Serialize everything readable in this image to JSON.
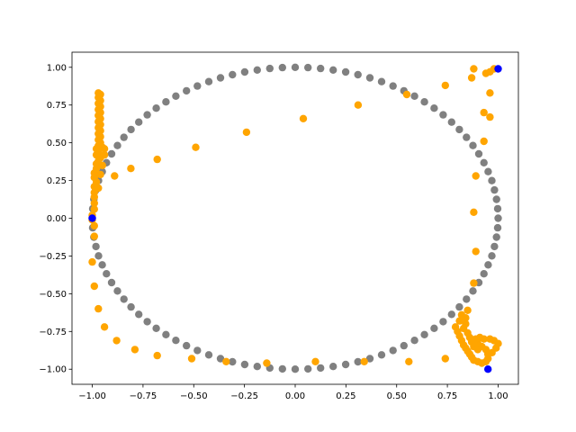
{
  "chart_data": {
    "type": "scatter",
    "title": "",
    "xlabel": "",
    "ylabel": "",
    "xlim": [
      -1.1,
      1.1
    ],
    "ylim": [
      -1.1,
      1.1
    ],
    "grid": false,
    "xticks": [
      -1.0,
      -0.75,
      -0.5,
      -0.25,
      0.0,
      0.25,
      0.5,
      0.75,
      1.0
    ],
    "yticks": [
      -1.0,
      -0.75,
      -0.5,
      -0.25,
      0.0,
      0.25,
      0.5,
      0.75,
      1.0
    ],
    "xtick_labels": [
      "−1.00",
      "−0.75",
      "−0.50",
      "−0.25",
      "0.00",
      "0.25",
      "0.50",
      "0.75",
      "1.00"
    ],
    "ytick_labels": [
      "−1.00",
      "−0.75",
      "−0.50",
      "−0.25",
      "0.00",
      "0.25",
      "0.50",
      "0.75",
      "1.00"
    ],
    "series": [
      {
        "color": "#808080",
        "points": [
          [
            1.0,
            0.0
          ],
          [
            0.998,
            0.063
          ],
          [
            0.992,
            0.125
          ],
          [
            0.982,
            0.187
          ],
          [
            0.969,
            0.249
          ],
          [
            0.951,
            0.309
          ],
          [
            0.93,
            0.368
          ],
          [
            0.905,
            0.426
          ],
          [
            0.876,
            0.482
          ],
          [
            0.844,
            0.536
          ],
          [
            0.809,
            0.588
          ],
          [
            0.771,
            0.637
          ],
          [
            0.729,
            0.685
          ],
          [
            0.685,
            0.729
          ],
          [
            0.637,
            0.771
          ],
          [
            0.588,
            0.809
          ],
          [
            0.536,
            0.844
          ],
          [
            0.482,
            0.876
          ],
          [
            0.426,
            0.905
          ],
          [
            0.368,
            0.93
          ],
          [
            0.309,
            0.951
          ],
          [
            0.249,
            0.969
          ],
          [
            0.187,
            0.982
          ],
          [
            0.125,
            0.992
          ],
          [
            0.063,
            0.998
          ],
          [
            0.0,
            1.0
          ],
          [
            -0.063,
            0.998
          ],
          [
            -0.125,
            0.992
          ],
          [
            -0.187,
            0.982
          ],
          [
            -0.249,
            0.969
          ],
          [
            -0.309,
            0.951
          ],
          [
            -0.368,
            0.93
          ],
          [
            -0.426,
            0.905
          ],
          [
            -0.482,
            0.876
          ],
          [
            -0.536,
            0.844
          ],
          [
            -0.588,
            0.809
          ],
          [
            -0.637,
            0.771
          ],
          [
            -0.685,
            0.729
          ],
          [
            -0.729,
            0.685
          ],
          [
            -0.771,
            0.637
          ],
          [
            -0.809,
            0.588
          ],
          [
            -0.844,
            0.536
          ],
          [
            -0.876,
            0.482
          ],
          [
            -0.905,
            0.426
          ],
          [
            -0.93,
            0.368
          ],
          [
            -0.951,
            0.309
          ],
          [
            -0.969,
            0.249
          ],
          [
            -0.982,
            0.187
          ],
          [
            -0.992,
            0.125
          ],
          [
            -0.998,
            0.063
          ],
          [
            -1.0,
            0.0
          ],
          [
            -0.998,
            -0.063
          ],
          [
            -0.992,
            -0.125
          ],
          [
            -0.982,
            -0.187
          ],
          [
            -0.969,
            -0.249
          ],
          [
            -0.951,
            -0.309
          ],
          [
            -0.93,
            -0.368
          ],
          [
            -0.905,
            -0.426
          ],
          [
            -0.876,
            -0.482
          ],
          [
            -0.844,
            -0.536
          ],
          [
            -0.809,
            -0.588
          ],
          [
            -0.771,
            -0.637
          ],
          [
            -0.729,
            -0.685
          ],
          [
            -0.685,
            -0.729
          ],
          [
            -0.637,
            -0.771
          ],
          [
            -0.588,
            -0.809
          ],
          [
            -0.536,
            -0.844
          ],
          [
            -0.482,
            -0.876
          ],
          [
            -0.426,
            -0.905
          ],
          [
            -0.368,
            -0.93
          ],
          [
            -0.309,
            -0.951
          ],
          [
            -0.249,
            -0.969
          ],
          [
            -0.187,
            -0.982
          ],
          [
            -0.125,
            -0.992
          ],
          [
            -0.063,
            -0.998
          ],
          [
            0.0,
            -1.0
          ],
          [
            0.063,
            -0.998
          ],
          [
            0.125,
            -0.992
          ],
          [
            0.187,
            -0.982
          ],
          [
            0.249,
            -0.969
          ],
          [
            0.309,
            -0.951
          ],
          [
            0.368,
            -0.93
          ],
          [
            0.426,
            -0.905
          ],
          [
            0.482,
            -0.876
          ],
          [
            0.536,
            -0.844
          ],
          [
            0.588,
            -0.809
          ],
          [
            0.637,
            -0.771
          ],
          [
            0.685,
            -0.729
          ],
          [
            0.729,
            -0.685
          ],
          [
            0.771,
            -0.637
          ],
          [
            0.809,
            -0.588
          ],
          [
            0.844,
            -0.536
          ],
          [
            0.876,
            -0.482
          ],
          [
            0.905,
            -0.426
          ],
          [
            0.93,
            -0.368
          ],
          [
            0.951,
            -0.309
          ],
          [
            0.969,
            -0.249
          ],
          [
            0.982,
            -0.187
          ],
          [
            0.992,
            -0.125
          ],
          [
            0.998,
            -0.063
          ]
        ]
      },
      {
        "color": "#ffa500",
        "points": [
          [
            -0.97,
            0.83
          ],
          [
            -0.96,
            0.82
          ],
          [
            -0.97,
            0.8
          ],
          [
            -0.96,
            0.78
          ],
          [
            -0.97,
            0.76
          ],
          [
            -0.96,
            0.74
          ],
          [
            -0.97,
            0.72
          ],
          [
            -0.96,
            0.7
          ],
          [
            -0.97,
            0.68
          ],
          [
            -0.96,
            0.66
          ],
          [
            -0.97,
            0.64
          ],
          [
            -0.96,
            0.62
          ],
          [
            -0.97,
            0.6
          ],
          [
            -0.96,
            0.58
          ],
          [
            -0.97,
            0.56
          ],
          [
            -0.96,
            0.54
          ],
          [
            -0.97,
            0.52
          ],
          [
            -0.96,
            0.5
          ],
          [
            -0.97,
            0.48
          ],
          [
            -0.98,
            0.46
          ],
          [
            -0.95,
            0.47
          ],
          [
            -0.94,
            0.46
          ],
          [
            -0.97,
            0.44
          ],
          [
            -0.98,
            0.42
          ],
          [
            -0.96,
            0.4
          ],
          [
            -0.94,
            0.42
          ],
          [
            -0.97,
            0.38
          ],
          [
            -0.98,
            0.36
          ],
          [
            -0.95,
            0.35
          ],
          [
            -0.98,
            0.33
          ],
          [
            -0.99,
            0.3
          ],
          [
            -0.96,
            0.29
          ],
          [
            -0.99,
            0.27
          ],
          [
            -0.98,
            0.24
          ],
          [
            -0.99,
            0.21
          ],
          [
            -0.97,
            0.2
          ],
          [
            -0.99,
            0.17
          ],
          [
            -0.99,
            0.14
          ],
          [
            -0.99,
            0.1
          ],
          [
            -0.99,
            0.06
          ],
          [
            -1.0,
            0.02
          ],
          [
            -1.0,
            -0.01
          ],
          [
            -0.99,
            -0.05
          ],
          [
            -0.99,
            -0.12
          ],
          [
            -0.89,
            0.28
          ],
          [
            -0.81,
            0.33
          ],
          [
            -0.68,
            0.39
          ],
          [
            -0.49,
            0.47
          ],
          [
            -0.24,
            0.57
          ],
          [
            0.04,
            0.66
          ],
          [
            0.31,
            0.75
          ],
          [
            0.55,
            0.82
          ],
          [
            0.74,
            0.88
          ],
          [
            0.87,
            0.93
          ],
          [
            0.94,
            0.96
          ],
          [
            0.96,
            0.97
          ],
          [
            0.98,
            0.99
          ],
          [
            0.88,
            0.99
          ],
          [
            0.96,
            0.83
          ],
          [
            0.93,
            0.7
          ],
          [
            0.96,
            0.67
          ],
          [
            0.93,
            0.51
          ],
          [
            0.89,
            0.28
          ],
          [
            0.88,
            0.04
          ],
          [
            0.89,
            -0.22
          ],
          [
            0.88,
            -0.43
          ],
          [
            0.85,
            -0.61
          ],
          [
            0.81,
            -0.68
          ],
          [
            0.79,
            -0.72
          ],
          [
            0.8,
            -0.75
          ],
          [
            0.81,
            -0.78
          ],
          [
            0.82,
            -0.81
          ],
          [
            0.83,
            -0.84
          ],
          [
            0.84,
            -0.86
          ],
          [
            0.85,
            -0.88
          ],
          [
            0.86,
            -0.9
          ],
          [
            0.87,
            -0.92
          ],
          [
            0.88,
            -0.94
          ],
          [
            0.9,
            -0.95
          ],
          [
            0.92,
            -0.96
          ],
          [
            0.94,
            -0.95
          ],
          [
            0.95,
            -0.93
          ],
          [
            0.95,
            -0.9
          ],
          [
            0.94,
            -0.87
          ],
          [
            0.92,
            -0.85
          ],
          [
            0.9,
            -0.83
          ],
          [
            0.89,
            -0.8
          ],
          [
            0.91,
            -0.79
          ],
          [
            0.93,
            -0.8
          ],
          [
            0.96,
            -0.8
          ],
          [
            0.98,
            -0.81
          ],
          [
            1.0,
            -0.83
          ],
          [
            0.99,
            -0.86
          ],
          [
            0.97,
            -0.89
          ],
          [
            0.95,
            -0.9
          ],
          [
            0.82,
            -0.64
          ],
          [
            0.84,
            -0.66
          ],
          [
            0.84,
            -0.7
          ],
          [
            0.83,
            -0.73
          ],
          [
            0.85,
            -0.76
          ],
          [
            0.86,
            -0.79
          ],
          [
            0.87,
            -0.82
          ],
          [
            0.88,
            -0.85
          ],
          [
            0.9,
            -0.87
          ],
          [
            0.74,
            -0.93
          ],
          [
            0.56,
            -0.95
          ],
          [
            0.34,
            -0.95
          ],
          [
            0.1,
            -0.95
          ],
          [
            -0.14,
            -0.96
          ],
          [
            -0.34,
            -0.95
          ],
          [
            -0.51,
            -0.93
          ],
          [
            -0.68,
            -0.91
          ],
          [
            -0.79,
            -0.87
          ],
          [
            -0.88,
            -0.81
          ],
          [
            -0.94,
            -0.72
          ],
          [
            -0.97,
            -0.6
          ],
          [
            -0.99,
            -0.45
          ],
          [
            -1.0,
            -0.29
          ]
        ]
      },
      {
        "color": "#0000ff",
        "points": [
          [
            1.0,
            0.99
          ],
          [
            0.95,
            -1.0
          ],
          [
            -1.0,
            0.0
          ]
        ]
      }
    ]
  }
}
